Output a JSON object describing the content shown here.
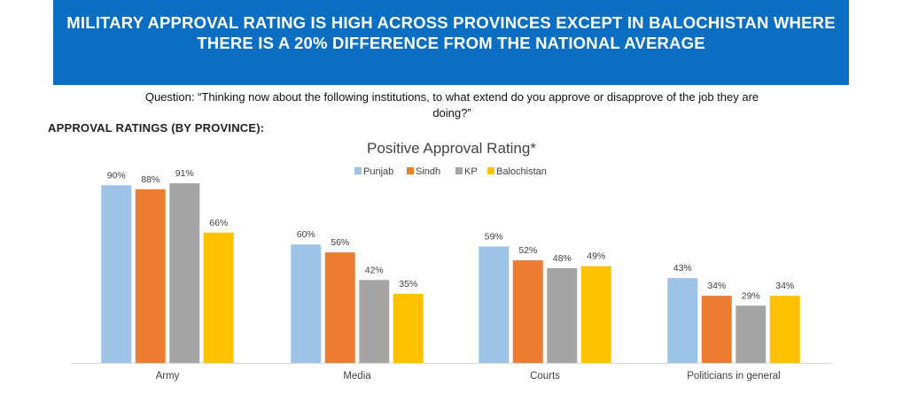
{
  "header": {
    "title": "MILITARY APPROVAL RATING IS HIGH ACROSS PROVINCES EXCEPT IN BALOCHISTAN WHERE THERE IS A 20% DIFFERENCE FROM THE NATIONAL AVERAGE",
    "question": "Question: “Thinking now about the following institutions, to what extend do you approve or disapprove of the job they are doing?”",
    "section_title": "APPROVAL RATINGS (BY PROVINCE):"
  },
  "colors": {
    "banner": "#0a6fc2",
    "punjab": "#9dc3e6",
    "sindh": "#ed7d31",
    "kp": "#a5a5a5",
    "balochistan": "#ffc000"
  },
  "chart_data": {
    "type": "bar",
    "title": "Positive Approval Rating*",
    "categories": [
      "Army",
      "Media",
      "Courts",
      "Politicians in general"
    ],
    "series": [
      {
        "name": "Punjab",
        "color": "#9dc3e6",
        "values": [
          90,
          60,
          59,
          43
        ],
        "labels": [
          "90%",
          "60%",
          "59%",
          "43%"
        ]
      },
      {
        "name": "Sindh",
        "color": "#ed7d31",
        "values": [
          88,
          56,
          52,
          34
        ],
        "labels": [
          "88%",
          "56%",
          "52%",
          "34%"
        ]
      },
      {
        "name": "KP",
        "color": "#a5a5a5",
        "values": [
          91,
          42,
          48,
          29
        ],
        "labels": [
          "91%",
          "42%",
          "48%",
          "29%"
        ]
      },
      {
        "name": "Balochistan",
        "color": "#ffc000",
        "values": [
          66,
          35,
          49,
          34
        ],
        "labels": [
          "66%",
          "35%",
          "49%",
          "34%"
        ]
      }
    ],
    "xlabel": "",
    "ylabel": "",
    "ylim": [
      0,
      100
    ],
    "grid": false,
    "legend": "top-center"
  }
}
